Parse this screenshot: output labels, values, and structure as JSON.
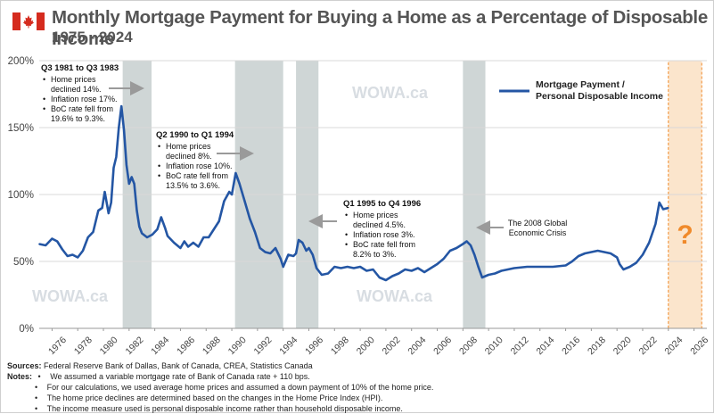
{
  "header": {
    "title": "Monthly Mortgage Payment for Buying a Home as a Percentage of Disposable Income",
    "subtitle": "1975 - 2024"
  },
  "watermarks": [
    "WOWA.ca",
    "WOWA.ca",
    "WOWA.ca"
  ],
  "notes": {
    "sources_label": "Sources:",
    "sources_text": "Federal Reserve Bank of Dallas, Bank of Canada, CREA, Statistics Canada",
    "notes_label": "Notes:",
    "items": [
      "We assumed a variable mortgage rate of Bank of Canada rate + 110 bps.",
      "For our calculations, we used average home prices and assumed a down payment of 10% of the home price.",
      "The home price declines are determined based on the changes in the Home Price Index (HPI).",
      "The income measure used is personal disposable income rather than household disposable income."
    ]
  },
  "colors": {
    "line": "#2456a4",
    "recession": "#cfd6d6",
    "forecast": "#f6c68f",
    "question": "#f08a2a",
    "arrow": "#9a9a9a"
  },
  "chart_data": {
    "type": "line",
    "title": "Monthly Mortgage Payment for Buying a Home as a Percentage of Disposable Income",
    "subtitle": "1975 - 2024",
    "xlabel": "",
    "ylabel": "",
    "xlim": [
      1975,
      2027
    ],
    "ylim": [
      0,
      200
    ],
    "x_ticks": [
      "1976",
      "1978",
      "1980",
      "1982",
      "1984",
      "1986",
      "1988",
      "1990",
      "1992",
      "1994",
      "1996",
      "1998",
      "2000",
      "2002",
      "2004",
      "2006",
      "2008",
      "2010",
      "2012",
      "2014",
      "2016",
      "2018",
      "2020",
      "2022",
      "2024",
      "2026"
    ],
    "y_ticks": [
      "0%",
      "50%",
      "100%",
      "150%",
      "200%"
    ],
    "grid": "horizontal",
    "legend": {
      "position": "top-right",
      "label": "Mortgage Payment / Personal Disposable Income"
    },
    "series": [
      {
        "name": "Mortgage Payment / Personal Disposable Income",
        "x": [
          1975.0,
          1975.5,
          1976.0,
          1976.4,
          1976.8,
          1977.2,
          1977.6,
          1978.0,
          1978.4,
          1978.8,
          1979.2,
          1979.6,
          1979.9,
          1980.1,
          1980.4,
          1980.6,
          1980.8,
          1981.0,
          1981.2,
          1981.4,
          1981.6,
          1981.8,
          1982.0,
          1982.2,
          1982.4,
          1982.6,
          1982.8,
          1983.0,
          1983.4,
          1983.8,
          1984.2,
          1984.5,
          1984.8,
          1985.0,
          1985.5,
          1986.0,
          1986.3,
          1986.6,
          1987.0,
          1987.4,
          1987.8,
          1988.2,
          1988.6,
          1989.0,
          1989.4,
          1989.8,
          1990.0,
          1990.3,
          1990.6,
          1991.0,
          1991.4,
          1991.8,
          1992.2,
          1992.6,
          1993.0,
          1993.4,
          1993.8,
          1994.0,
          1994.4,
          1994.8,
          1995.0,
          1995.2,
          1995.5,
          1995.8,
          1996.0,
          1996.3,
          1996.6,
          1997.0,
          1997.5,
          1998.0,
          1998.5,
          1999.0,
          1999.5,
          2000.0,
          2000.5,
          2001.0,
          2001.5,
          2002.0,
          2002.5,
          2003.0,
          2003.5,
          2004.0,
          2004.5,
          2005.0,
          2005.5,
          2006.0,
          2006.5,
          2007.0,
          2007.5,
          2008.0,
          2008.3,
          2008.6,
          2008.9,
          2009.2,
          2009.5,
          2010.0,
          2010.5,
          2011.0,
          2011.5,
          2012.0,
          2013.0,
          2014.0,
          2015.0,
          2016.0,
          2016.5,
          2017.0,
          2017.5,
          2018.0,
          2018.5,
          2019.0,
          2019.5,
          2020.0,
          2020.2,
          2020.5,
          2021.0,
          2021.5,
          2022.0,
          2022.5,
          2023.0,
          2023.3,
          2023.6,
          2024.0
        ],
        "y": [
          63,
          62,
          67,
          65,
          59,
          54,
          55,
          53,
          58,
          68,
          72,
          88,
          90,
          102,
          86,
          94,
          120,
          128,
          150,
          166,
          148,
          122,
          108,
          113,
          108,
          88,
          76,
          71,
          68,
          70,
          74,
          83,
          75,
          69,
          64,
          60,
          65,
          61,
          64,
          61,
          68,
          68,
          74,
          80,
          95,
          102,
          100,
          116,
          108,
          95,
          82,
          72,
          60,
          57,
          56,
          60,
          52,
          46,
          55,
          54,
          56,
          66,
          64,
          58,
          60,
          55,
          45,
          40,
          41,
          46,
          45,
          46,
          45,
          46,
          43,
          44,
          38,
          36,
          39,
          41,
          44,
          43,
          45,
          42,
          45,
          48,
          52,
          58,
          60,
          63,
          65,
          62,
          55,
          46,
          38,
          40,
          41,
          43,
          44,
          45,
          46,
          46,
          46,
          47,
          50,
          54,
          56,
          57,
          58,
          57,
          56,
          53,
          48,
          44,
          46,
          49,
          55,
          64,
          78,
          94,
          89,
          90
        ]
      }
    ],
    "shaded_periods": [
      {
        "start": 1981.5,
        "end": 1983.75,
        "label": "Q3 1981 to Q3 1983"
      },
      {
        "start": 1990.25,
        "end": 1994.0,
        "label": "Q2 1990 to Q1 1994"
      },
      {
        "start": 1995.0,
        "end": 1996.75,
        "label": "Q1 1995 to Q4 1996"
      },
      {
        "start": 2008.0,
        "end": 2009.75,
        "label": ""
      }
    ],
    "forecast_period": {
      "start": 2024.0,
      "end": 2026.6,
      "label": "?"
    },
    "annotations": [
      {
        "title": "Q3 1981 to Q3 1983",
        "bullets": [
          "Home prices declined 14%.",
          "Inflation rose 17%.",
          "BoC rate fell from 19.6% to 9.3%."
        ]
      },
      {
        "title": "Q2 1990 to Q1 1994",
        "bullets": [
          "Home prices declined 8%.",
          "Inflation rose 10%.",
          "BoC rate fell from 13.5% to 3.6%."
        ]
      },
      {
        "title": "Q1 1995 to Q4 1996",
        "bullets": [
          "Home prices declined 4.5%.",
          "Inflation rose 3%.",
          "BoC rate fell from 8.2% to 3%."
        ]
      },
      {
        "title": "",
        "bullets": [
          "The 2008 Global Economic Crisis"
        ]
      }
    ]
  }
}
